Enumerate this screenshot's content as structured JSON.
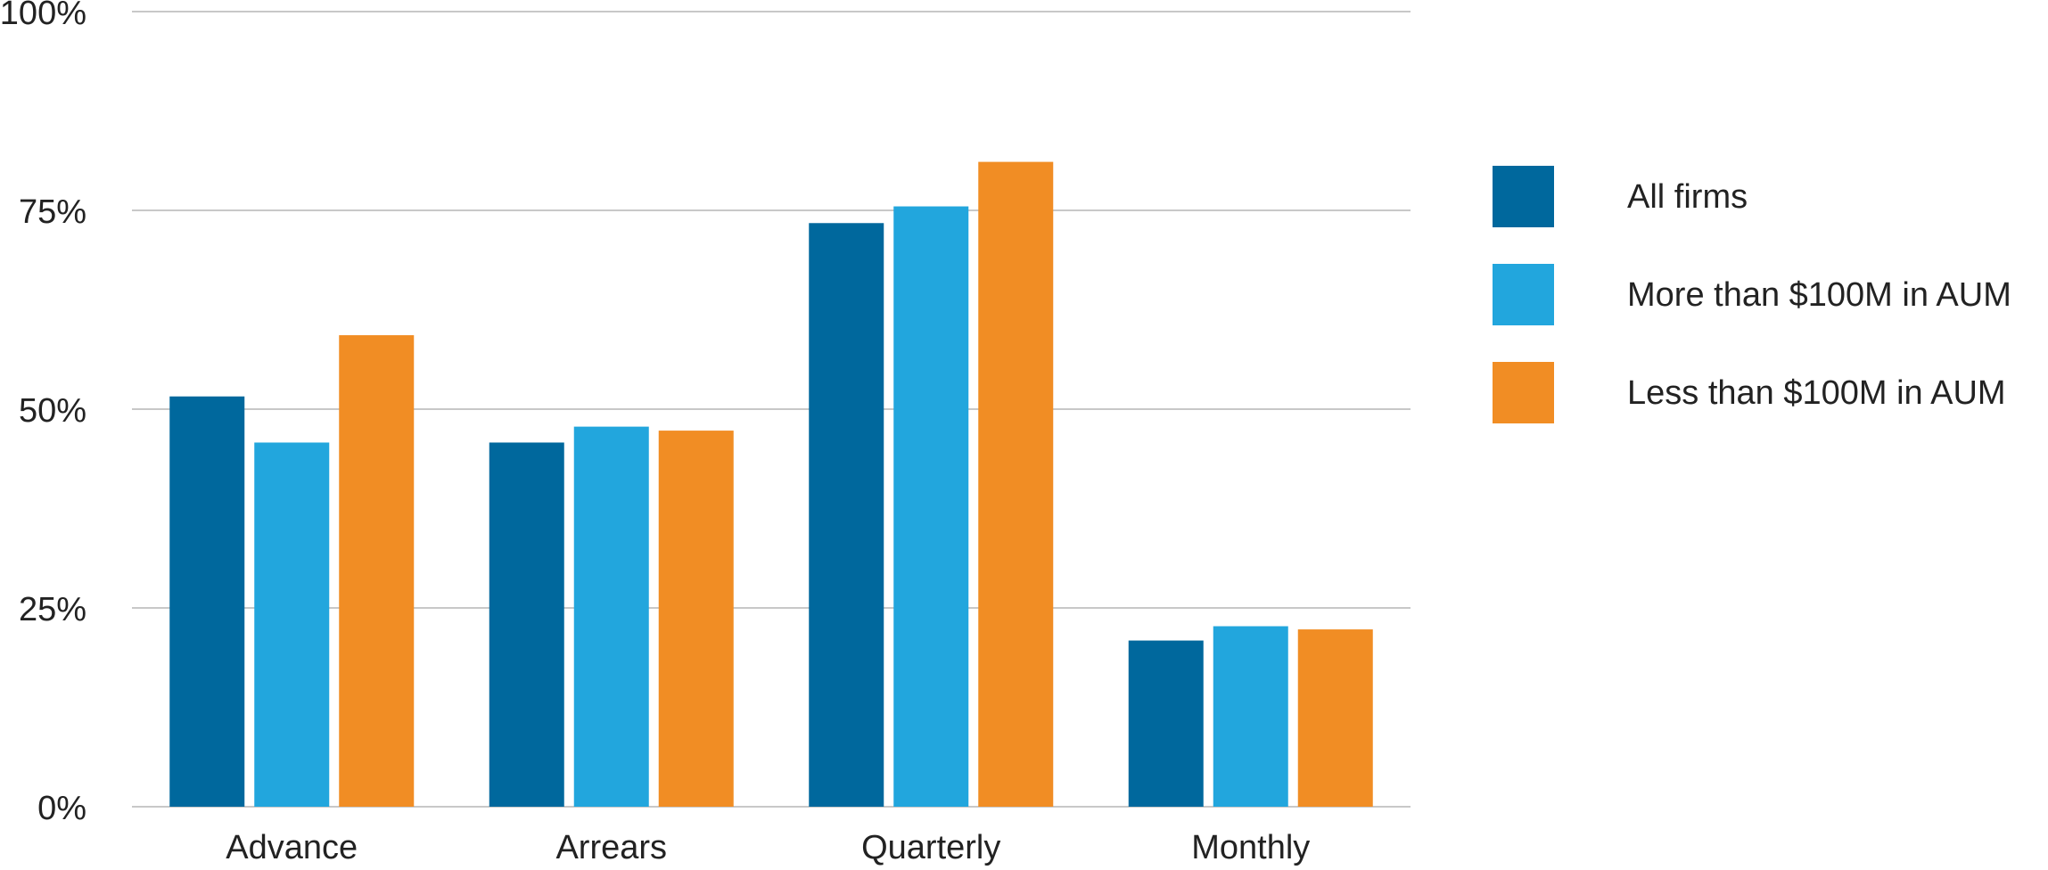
{
  "chart_data": {
    "type": "bar",
    "categories": [
      "Advance",
      "Arrears",
      "Quarterly",
      "Monthly"
    ],
    "series": [
      {
        "name": "All firms",
        "color": "#00689d",
        "values": [
          51.6,
          45.8,
          73.4,
          20.9
        ]
      },
      {
        "name": "More than $100M in AUM",
        "color": "#22a6dd",
        "values": [
          45.8,
          47.8,
          75.5,
          22.7
        ]
      },
      {
        "name": "Less than $100M in AUM",
        "color": "#f18d24",
        "values": [
          59.3,
          47.3,
          81.1,
          22.3
        ]
      }
    ],
    "ylim": [
      0,
      100
    ],
    "yticks": [
      {
        "value": 0,
        "label": "0%"
      },
      {
        "value": 25,
        "label": "25%"
      },
      {
        "value": 50,
        "label": "50%"
      },
      {
        "value": 75,
        "label": "75%"
      },
      {
        "value": 100,
        "label": "100%"
      }
    ],
    "grid": true,
    "legend": "right"
  }
}
